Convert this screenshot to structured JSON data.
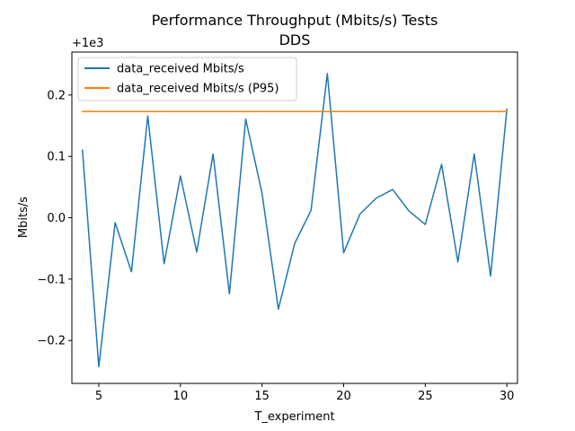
{
  "chart_data": {
    "type": "line",
    "title": "Performance Throughput (Mbits/s) Tests",
    "subtitle": "DDS",
    "xlabel": "T_experiment",
    "ylabel": "Mbits/s",
    "offset_label": "+1e3",
    "xlim": [
      3.35,
      30.65
    ],
    "ylim": [
      -0.27,
      0.27
    ],
    "offset": 1000,
    "x_ticks": [
      5,
      10,
      15,
      20,
      25,
      30
    ],
    "x_tick_labels": [
      "5",
      "10",
      "15",
      "20",
      "25",
      "30"
    ],
    "y_ticks": [
      -0.2,
      -0.1,
      0.0,
      0.1,
      0.2
    ],
    "y_tick_labels": [
      "−0.2",
      "−0.1",
      "0.0",
      "0.1",
      "0.2"
    ],
    "grid": false,
    "legend_position": "upper-left",
    "series": [
      {
        "name": "data_received Mbits/s",
        "color": "#1f77b4",
        "x": [
          4,
          5,
          6,
          7,
          8,
          9,
          10,
          11,
          12,
          13,
          14,
          15,
          16,
          17,
          18,
          19,
          20,
          21,
          22,
          23,
          24,
          25,
          26,
          27,
          28,
          29,
          30
        ],
        "y": [
          0.11,
          -0.243,
          -0.008,
          -0.088,
          0.166,
          -0.075,
          0.068,
          -0.056,
          0.104,
          -0.124,
          0.161,
          0.04,
          -0.149,
          -0.042,
          0.012,
          0.235,
          -0.057,
          0.006,
          0.032,
          0.046,
          0.011,
          -0.011,
          0.087,
          -0.072,
          0.104,
          -0.095,
          0.177
        ]
      },
      {
        "name": "data_received Mbits/s (P95)",
        "color": "#ff7f0e",
        "x": [
          4,
          30
        ],
        "y": [
          0.173,
          0.173
        ]
      }
    ]
  }
}
